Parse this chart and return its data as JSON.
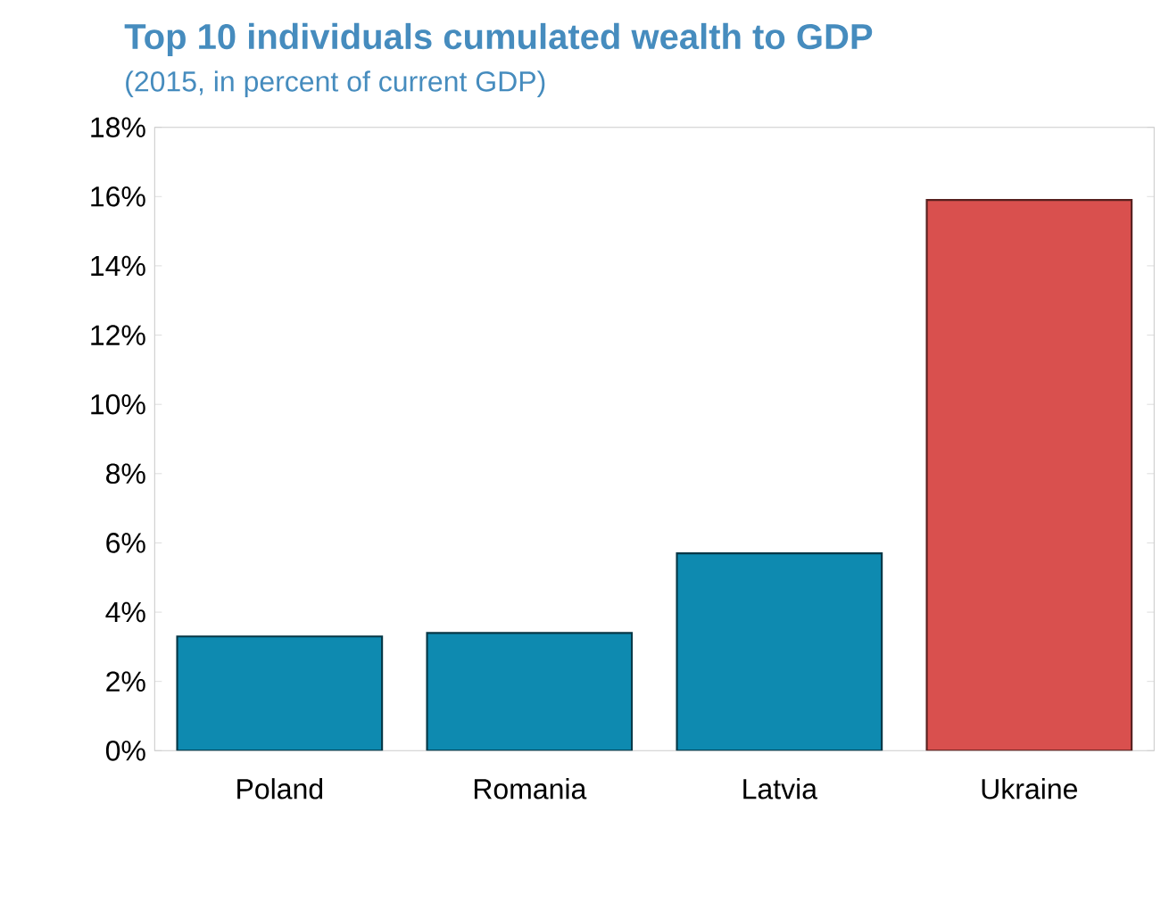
{
  "chart_data": {
    "type": "bar",
    "title": "Top 10 individuals cumulated wealth to GDP",
    "subtitle": "(2015, in percent of current GDP)",
    "categories": [
      "Poland",
      "Romania",
      "Latvia",
      "Ukraine"
    ],
    "values": [
      3.3,
      3.4,
      5.7,
      15.9
    ],
    "colors": [
      "#0e8ab0",
      "#0e8ab0",
      "#0e8ab0",
      "#d9504e"
    ],
    "ylim": [
      0,
      18
    ],
    "yticks": [
      {
        "value": 0,
        "label": "0%"
      },
      {
        "value": 2,
        "label": "2%"
      },
      {
        "value": 4,
        "label": "4%"
      },
      {
        "value": 6,
        "label": "6%"
      },
      {
        "value": 8,
        "label": "8%"
      },
      {
        "value": 10,
        "label": "10%"
      },
      {
        "value": 12,
        "label": "12%"
      },
      {
        "value": 14,
        "label": "14%"
      },
      {
        "value": 16,
        "label": "16%"
      },
      {
        "value": 18,
        "label": "18%"
      }
    ],
    "grid": false
  }
}
